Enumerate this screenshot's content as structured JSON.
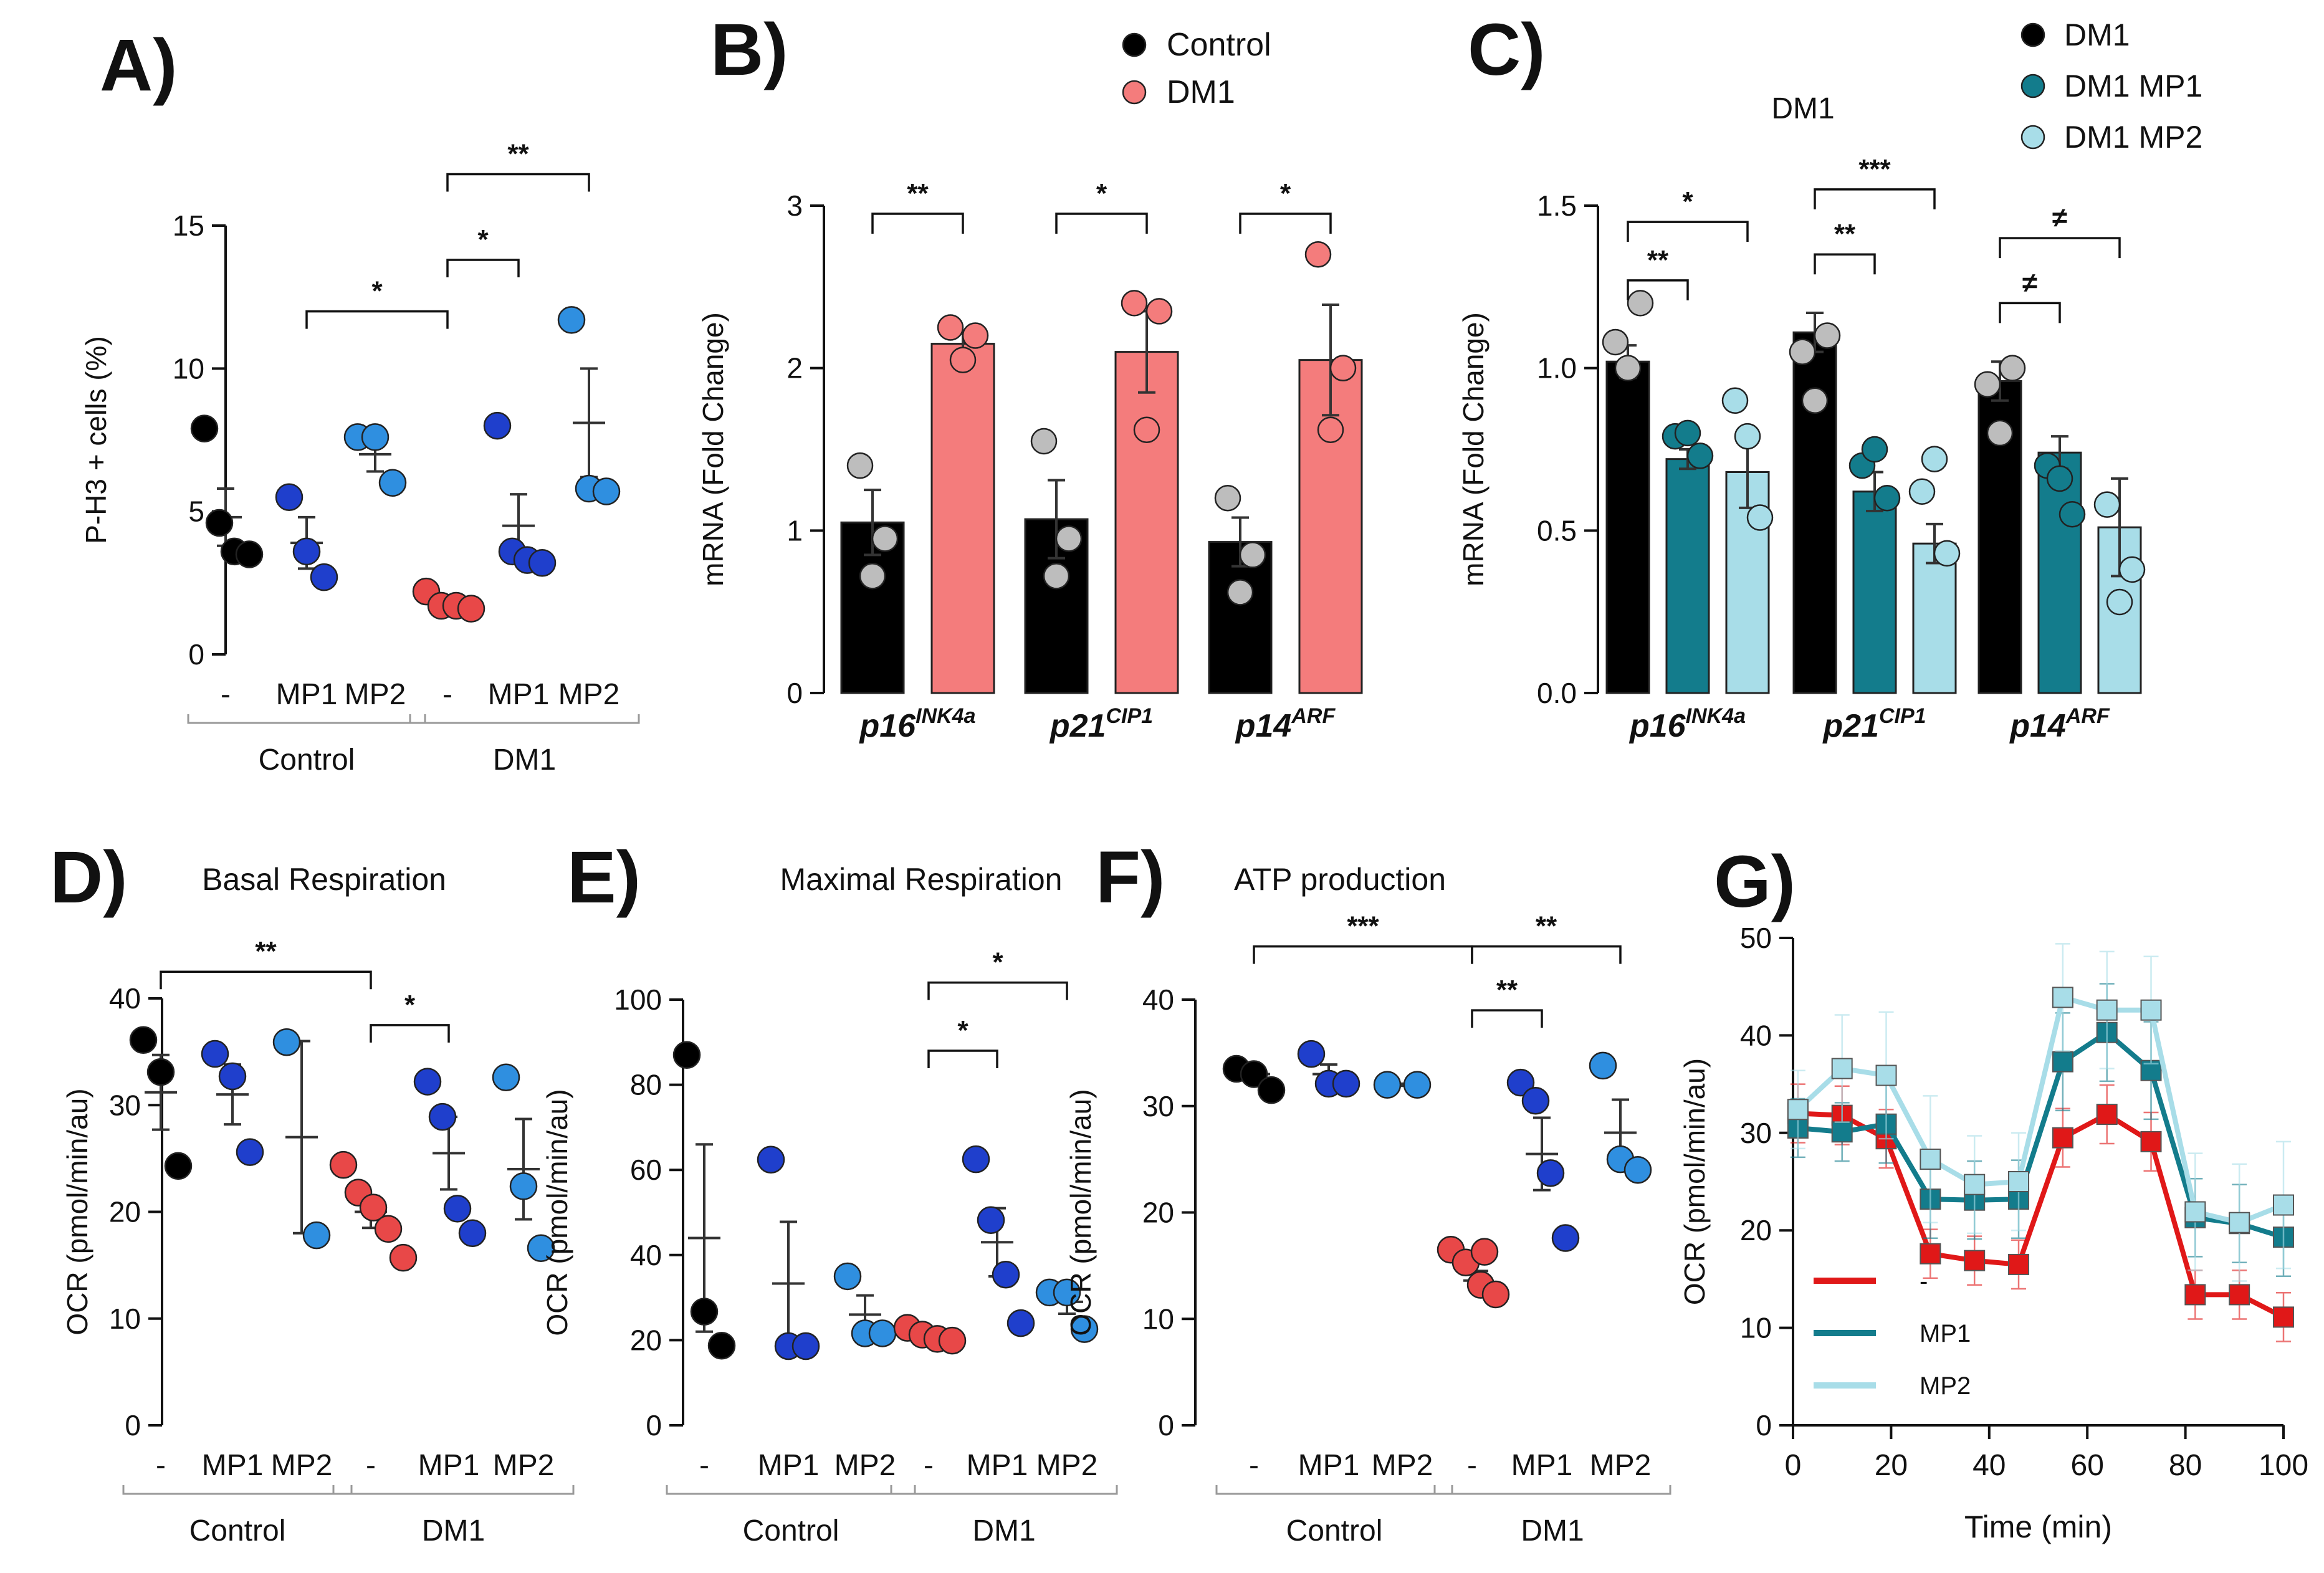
{
  "colors": {
    "control": "#000000",
    "dm1": "#e84848",
    "mp1": "#1f3fcc",
    "mp2": "#2f8fe0",
    "dm1_bar": "#f47c7c",
    "control_open": "#bdbdbd",
    "dm1_mp1": "#137c8c",
    "dm1_mp2": "#a8dde8",
    "line_dm1": "#e01818"
  },
  "chart_data": [
    {
      "id": "A",
      "panel_label": "A)",
      "type": "scatter",
      "title": "",
      "ylabel": "P-H3 + cells (%)",
      "ylim": [
        0,
        15
      ],
      "yticks": [
        "0",
        "5",
        "10",
        "15"
      ],
      "categories": [
        "-",
        "MP1",
        "MP2",
        "-",
        "MP1",
        "MP2"
      ],
      "groups": [
        "Control",
        "DM1"
      ],
      "points": [
        {
          "cat": 0,
          "color": "control",
          "values": [
            7.9,
            4.6,
            3.6,
            3.5
          ],
          "mean": 4.8,
          "sem": 1.0
        },
        {
          "cat": 1,
          "color": "mp1",
          "values": [
            5.5,
            3.6,
            2.7
          ],
          "mean": 3.9,
          "sem": 0.9
        },
        {
          "cat": 2,
          "color": "mp2",
          "values": [
            7.6,
            7.6,
            6.0
          ],
          "mean": 7.0,
          "sem": 0.6
        },
        {
          "cat": 3,
          "color": "dm1",
          "values": [
            2.2,
            1.7,
            1.7,
            1.6
          ],
          "mean": 1.8,
          "sem": 0.2
        },
        {
          "cat": 4,
          "color": "mp1",
          "values": [
            8.0,
            3.6,
            3.3,
            3.2
          ],
          "mean": 4.5,
          "sem": 1.1
        },
        {
          "cat": 5,
          "color": "mp2",
          "values": [
            11.7,
            5.8,
            5.7
          ],
          "mean": 8.1,
          "sem": 1.9
        }
      ],
      "annotations": [
        {
          "from": 1,
          "to": 3,
          "label": "*",
          "y": 12.0
        },
        {
          "from": 3,
          "to": 4,
          "label": "*",
          "y": 13.8
        },
        {
          "from": 3,
          "to": 5,
          "label": "**",
          "y": 16.8
        }
      ]
    },
    {
      "id": "B",
      "panel_label": "B)",
      "type": "bar",
      "title": "",
      "ylabel": "mRNA (Fold Change)",
      "ylim": [
        0,
        3
      ],
      "yticks": [
        "0",
        "1",
        "2",
        "3"
      ],
      "genes": [
        {
          "name": "p16",
          "sup": "INK4a"
        },
        {
          "name": "p21",
          "sup": "CIP1"
        },
        {
          "name": "p14",
          "sup": "ARF"
        }
      ],
      "legend": [
        {
          "label": "Control",
          "color": "control"
        },
        {
          "label": "DM1",
          "color": "dm1_bar"
        }
      ],
      "series": [
        {
          "name": "Control",
          "color": "control",
          "dot": "control_open",
          "values": [
            1.05,
            1.07,
            0.93
          ],
          "sem": [
            0.2,
            0.24,
            0.15
          ],
          "points": [
            [
              1.4,
              0.95,
              0.72
            ],
            [
              1.55,
              0.95,
              0.72
            ],
            [
              1.2,
              0.85,
              0.62
            ]
          ]
        },
        {
          "name": "DM1",
          "color": "dm1_bar",
          "dot": "dm1_bar",
          "values": [
            2.15,
            2.1,
            2.05
          ],
          "sem": [
            0.08,
            0.25,
            0.34
          ],
          "points": [
            [
              2.25,
              2.2,
              2.05
            ],
            [
              2.4,
              2.35,
              1.62
            ],
            [
              2.7,
              2.0,
              1.62
            ]
          ]
        }
      ],
      "annotations": [
        {
          "gene": 0,
          "label": "**",
          "y": 2.95
        },
        {
          "gene": 1,
          "label": "*",
          "y": 2.95
        },
        {
          "gene": 2,
          "label": "*",
          "y": 2.95
        }
      ]
    },
    {
      "id": "C",
      "panel_label": "C)",
      "type": "bar",
      "title": "DM1",
      "ylabel": "mRNA (Fold Change)",
      "ylim": [
        0,
        1.5
      ],
      "yticks": [
        "0.0",
        "0.5",
        "1.0",
        "1.5"
      ],
      "genes": [
        {
          "name": "p16",
          "sup": "INK4a"
        },
        {
          "name": "p21",
          "sup": "CIP1"
        },
        {
          "name": "p14",
          "sup": "ARF"
        }
      ],
      "legend": [
        {
          "label": "DM1",
          "color": "control"
        },
        {
          "label": "DM1 MP1",
          "color": "dm1_mp1"
        },
        {
          "label": "DM1 MP2",
          "color": "dm1_mp2"
        }
      ],
      "series": [
        {
          "name": "DM1",
          "color": "control",
          "dot": "control_open",
          "values": [
            1.02,
            1.11,
            0.96
          ],
          "sem": [
            0.05,
            0.06,
            0.06
          ],
          "points": [
            [
              1.08,
              1.2,
              1.0
            ],
            [
              1.05,
              1.1,
              0.9
            ],
            [
              0.95,
              1.0,
              0.8
            ]
          ]
        },
        {
          "name": "DM1 MP1",
          "color": "dm1_mp1",
          "dot": "dm1_mp1",
          "values": [
            0.72,
            0.62,
            0.74
          ],
          "sem": [
            0.03,
            0.06,
            0.05
          ],
          "points": [
            [
              0.79,
              0.73,
              0.8
            ],
            [
              0.7,
              0.6,
              0.75
            ],
            [
              0.7,
              0.55,
              0.66
            ]
          ]
        },
        {
          "name": "DM1 MP2",
          "color": "dm1_mp2",
          "dot": "dm1_mp2",
          "values": [
            0.68,
            0.46,
            0.51
          ],
          "sem": [
            0.11,
            0.06,
            0.15
          ],
          "points": [
            [
              0.9,
              0.54,
              0.79
            ],
            [
              0.62,
              0.43,
              0.72
            ],
            [
              0.58,
              0.38,
              0.28
            ]
          ]
        }
      ],
      "annotations": [
        {
          "gene": 0,
          "from": 0,
          "to": 1,
          "label": "**",
          "y": 1.27
        },
        {
          "gene": 0,
          "from": 0,
          "to": 2,
          "label": "*",
          "y": 1.45
        },
        {
          "gene": 1,
          "from": 0,
          "to": 1,
          "label": "**",
          "y": 1.35
        },
        {
          "gene": 1,
          "from": 0,
          "to": 2,
          "label": "***",
          "y": 1.55
        },
        {
          "gene": 2,
          "from": 0,
          "to": 1,
          "label": "≠",
          "y": 1.2
        },
        {
          "gene": 2,
          "from": 0,
          "to": 2,
          "label": "≠",
          "y": 1.4
        }
      ]
    },
    {
      "id": "D",
      "panel_label": "D)",
      "type": "scatter",
      "title": "Basal Respiration",
      "ylabel": "OCR (pmol/min/au)",
      "ylim": [
        0,
        40
      ],
      "yticks": [
        "0",
        "10",
        "20",
        "30",
        "40"
      ],
      "categories": [
        "-",
        "MP1",
        "MP2",
        "-",
        "MP1",
        "MP2"
      ],
      "groups": [
        "Control",
        "DM1"
      ],
      "points": [
        {
          "cat": 0,
          "color": "control",
          "values": [
            36.1,
            33.1,
            24.3
          ],
          "mean": 31.2,
          "sem": 3.5
        },
        {
          "cat": 1,
          "color": "mp1",
          "values": [
            34.8,
            32.7,
            25.6
          ],
          "mean": 31.0,
          "sem": 2.8
        },
        {
          "cat": 2,
          "color": "mp2",
          "values": [
            35.9,
            17.8
          ],
          "mean": 27.0,
          "sem": 9.0
        },
        {
          "cat": 3,
          "color": "dm1",
          "values": [
            24.4,
            21.8,
            20.4,
            18.4,
            15.7
          ],
          "mean": 20.0,
          "sem": 1.5
        },
        {
          "cat": 4,
          "color": "mp1",
          "values": [
            32.2,
            28.9,
            20.3,
            18.0
          ],
          "mean": 25.5,
          "sem": 3.4
        },
        {
          "cat": 5,
          "color": "mp2",
          "values": [
            32.6,
            22.4,
            16.6
          ],
          "mean": 24.0,
          "sem": 4.7
        }
      ],
      "annotations": [
        {
          "from": 0,
          "to": 3,
          "label": "**",
          "y": 42.5
        },
        {
          "from": 3,
          "to": 4,
          "label": "*",
          "y": 37.5
        }
      ]
    },
    {
      "id": "E",
      "panel_label": "E)",
      "type": "scatter",
      "title": "Maximal Respiration",
      "ylabel": "OCR (pmol/min/au)",
      "ylim": [
        0,
        100
      ],
      "yticks": [
        "0",
        "20",
        "40",
        "60",
        "80",
        "100"
      ],
      "categories": [
        "-",
        "MP1",
        "MP2",
        "-",
        "MP1",
        "MP2"
      ],
      "groups": [
        "Control",
        "DM1"
      ],
      "points": [
        {
          "cat": 0,
          "color": "control",
          "values": [
            87.0,
            26.7,
            18.7
          ],
          "mean": 44.0,
          "sem": 22.0
        },
        {
          "cat": 1,
          "color": "mp1",
          "values": [
            62.4,
            18.6,
            18.6
          ],
          "mean": 33.3,
          "sem": 14.5
        },
        {
          "cat": 2,
          "color": "mp2",
          "values": [
            35.0,
            21.6,
            21.6
          ],
          "mean": 26.0,
          "sem": 4.5
        },
        {
          "cat": 3,
          "color": "dm1",
          "values": [
            22.9,
            21.3,
            20.3,
            19.9
          ],
          "mean": 21.0,
          "sem": 0.7
        },
        {
          "cat": 4,
          "color": "mp1",
          "values": [
            62.5,
            48.2,
            35.4,
            24.0
          ],
          "mean": 43.0,
          "sem": 8.0
        },
        {
          "cat": 5,
          "color": "mp2",
          "values": [
            31.2,
            31.2,
            22.6
          ],
          "mean": 29.0,
          "sem": 2.8
        }
      ],
      "annotations": [
        {
          "from": 3,
          "to": 4,
          "label": "*",
          "y": 88.0
        },
        {
          "from": 3,
          "to": 5,
          "label": "*",
          "y": 104.0
        }
      ]
    },
    {
      "id": "F",
      "panel_label": "F)",
      "type": "scatter",
      "title": "ATP production",
      "ylabel": "OCR (pmol/min/au)",
      "ylim": [
        0,
        40
      ],
      "yticks": [
        "0",
        "10",
        "20",
        "30",
        "40"
      ],
      "categories": [
        "-",
        "MP1",
        "MP2",
        "-",
        "MP1",
        "MP2"
      ],
      "groups": [
        "Control",
        "DM1"
      ],
      "points": [
        {
          "cat": 0,
          "color": "control",
          "values": [
            33.5,
            33.0,
            31.5
          ],
          "mean": 33.0,
          "sem": 0.6
        },
        {
          "cat": 1,
          "color": "mp1",
          "values": [
            34.9,
            32.1,
            32.1
          ],
          "mean": 33.0,
          "sem": 0.9
        },
        {
          "cat": 2,
          "color": "mp2",
          "values": [
            32.0,
            32.0
          ],
          "mean": 32.0,
          "sem": 0.1
        },
        {
          "cat": 3,
          "color": "dm1",
          "values": [
            16.5,
            15.3,
            13.2,
            12.3
          ],
          "mean": 14.5,
          "sem": 0.9
        },
        {
          "cat": 4,
          "color": "mp1",
          "values": [
            32.2,
            30.5,
            23.7,
            17.6
          ],
          "mean": 25.5,
          "sem": 3.4
        },
        {
          "cat": 5,
          "color": "mp2",
          "values": [
            33.8,
            25.0,
            24.0
          ],
          "mean": 27.5,
          "sem": 3.1
        },
        {
          "cat": 3.05,
          "color": "dm1",
          "values": [
            16.3
          ],
          "mean": null,
          "sem": null
        }
      ],
      "annotations": [
        {
          "from": 0,
          "to": 3,
          "label": "***",
          "y": 45.0
        },
        {
          "from": 3,
          "to": 4,
          "label": "**",
          "y": 39.0
        },
        {
          "from": 3,
          "to": 5,
          "label": "**",
          "y": 45.0
        }
      ]
    },
    {
      "id": "G",
      "panel_label": "G)",
      "type": "line",
      "title": "",
      "xlabel": "Time (min)",
      "ylabel": "OCR (pmol/min/au)",
      "xlim": [
        0,
        100
      ],
      "ylim": [
        0,
        50
      ],
      "xticks": [
        "0",
        "20",
        "40",
        "60",
        "80",
        "100"
      ],
      "yticks": [
        "0",
        "10",
        "20",
        "30",
        "40",
        "50"
      ],
      "x": [
        1,
        10,
        19,
        28,
        37,
        46,
        55,
        64,
        73,
        82,
        91,
        100
      ],
      "series": [
        {
          "name": "-",
          "color": "line_dm1",
          "values": [
            32,
            31.8,
            29.4,
            17.6,
            16.9,
            16.5,
            29.5,
            31.9,
            29.1,
            13.4,
            13.4,
            11.1
          ],
          "err": [
            3,
            3,
            3,
            2.5,
            2.5,
            2.5,
            3,
            3,
            3,
            2.5,
            2.5,
            2.5
          ]
        },
        {
          "name": "MP1",
          "color": "dm1_mp1",
          "values": [
            30.5,
            30.1,
            30.9,
            23.2,
            23.1,
            23.2,
            37.3,
            40.3,
            36.4,
            21.3,
            20.7,
            19.3
          ],
          "err": [
            3,
            3,
            4,
            4,
            4,
            4,
            5,
            5,
            5,
            4,
            4,
            4
          ]
        },
        {
          "name": "MP2",
          "color": "dm1_mp2",
          "values": [
            32.4,
            36.6,
            35.9,
            27.3,
            24.7,
            25.0,
            43.9,
            42.6,
            42.6,
            21.9,
            20.8,
            22.6
          ],
          "err": [
            4,
            5.5,
            6.5,
            6.5,
            5,
            5,
            5.5,
            6,
            5.5,
            6,
            6,
            6.5
          ]
        }
      ]
    }
  ]
}
